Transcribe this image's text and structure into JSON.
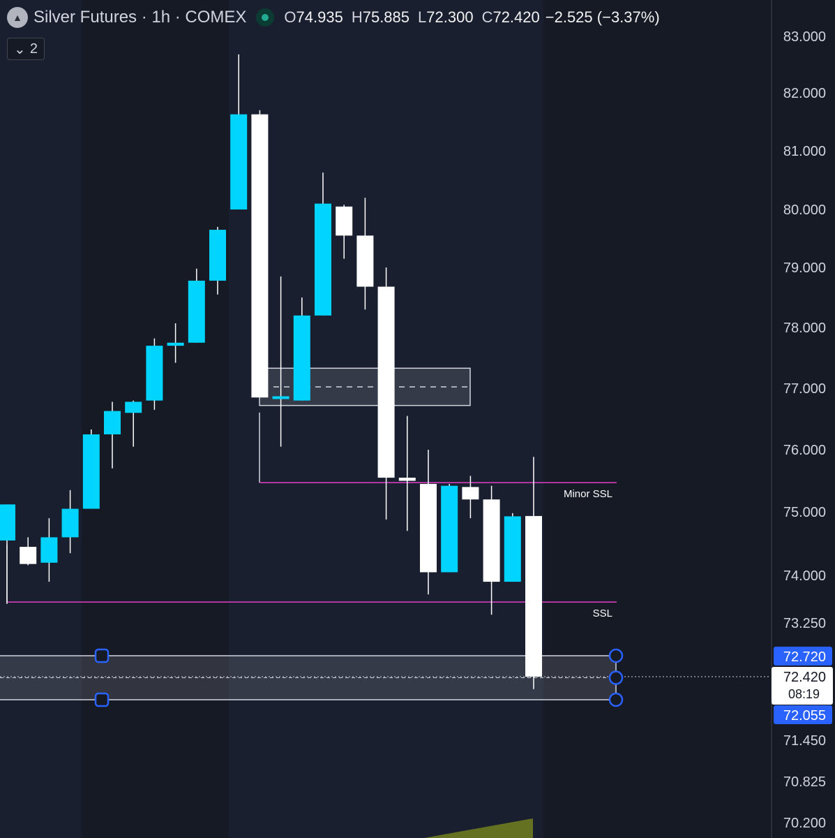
{
  "header": {
    "symbol_title": "Silver Futures · 1h · COMEX",
    "open_label": "O",
    "open": "74.935",
    "high_label": "H",
    "high": "75.885",
    "low_label": "L",
    "low": "72.300",
    "close_label": "C",
    "close": "72.420",
    "change": "−2.525 (−3.37%)",
    "logo_icon": "silver-bars-icon",
    "status_icon": "market-open-dot-icon"
  },
  "collapse_button": {
    "label": "2",
    "icon": "chevron-down-icon"
  },
  "colors": {
    "background": "#161a25",
    "session_band": "#1a1f30",
    "bull": "#00d4ff",
    "bear": "#ffffff",
    "ssl_line": "#e040c8",
    "axis_text": "#d1d4dc",
    "highlight_label": "#2962ff"
  },
  "chart_data": {
    "type": "candlestick",
    "symbol": "Silver Futures",
    "timeframe": "1h",
    "exchange": "COMEX",
    "y_axis_ticks": [
      "83.000",
      "82.000",
      "81.000",
      "80.000",
      "79.000",
      "78.000",
      "77.000",
      "76.000",
      "75.000",
      "74.000",
      "73.250",
      "71.450",
      "70.825",
      "70.200"
    ],
    "price_labels": {
      "zone_top": "72.720",
      "zone_bottom": "72.055",
      "last_price": "72.420",
      "countdown": "08:19"
    },
    "candles": [
      {
        "o": 74.55,
        "h": 75.12,
        "l": 73.55,
        "c": 75.12
      },
      {
        "o": 74.45,
        "h": 74.6,
        "l": 74.16,
        "c": 74.18
      },
      {
        "o": 74.2,
        "h": 74.9,
        "l": 73.9,
        "c": 74.6
      },
      {
        "o": 74.6,
        "h": 75.35,
        "l": 74.35,
        "c": 75.05
      },
      {
        "o": 75.05,
        "h": 76.33,
        "l": 75.05,
        "c": 76.25
      },
      {
        "o": 76.25,
        "h": 76.78,
        "l": 75.7,
        "c": 76.63
      },
      {
        "o": 76.6,
        "h": 76.8,
        "l": 76.05,
        "c": 76.78
      },
      {
        "o": 76.8,
        "h": 77.82,
        "l": 76.65,
        "c": 77.7
      },
      {
        "o": 77.7,
        "h": 78.07,
        "l": 77.42,
        "c": 77.75
      },
      {
        "o": 77.75,
        "h": 78.98,
        "l": 77.75,
        "c": 78.78
      },
      {
        "o": 78.78,
        "h": 79.7,
        "l": 78.55,
        "c": 79.65
      },
      {
        "o": 80.0,
        "h": 82.68,
        "l": 80.0,
        "c": 81.63
      },
      {
        "o": 81.63,
        "h": 81.7,
        "l": 76.85,
        "c": 76.85
      },
      {
        "o": 76.85,
        "h": 78.85,
        "l": 76.05,
        "c": 76.87
      },
      {
        "o": 76.8,
        "h": 78.5,
        "l": 76.8,
        "c": 78.2
      },
      {
        "o": 78.2,
        "h": 80.63,
        "l": 78.2,
        "c": 80.1
      },
      {
        "o": 80.05,
        "h": 80.08,
        "l": 79.15,
        "c": 79.55
      },
      {
        "o": 79.55,
        "h": 80.2,
        "l": 78.3,
        "c": 78.68
      },
      {
        "o": 78.68,
        "h": 79.0,
        "l": 74.88,
        "c": 75.55
      },
      {
        "o": 75.55,
        "h": 76.55,
        "l": 74.7,
        "c": 75.5
      },
      {
        "o": 75.45,
        "h": 76.0,
        "l": 73.7,
        "c": 74.05
      },
      {
        "o": 74.05,
        "h": 75.45,
        "l": 74.05,
        "c": 75.42
      },
      {
        "o": 75.4,
        "h": 75.58,
        "l": 74.9,
        "c": 75.2
      },
      {
        "o": 75.2,
        "h": 75.42,
        "l": 73.38,
        "c": 73.9
      },
      {
        "o": 73.9,
        "h": 74.98,
        "l": 73.9,
        "c": 74.93
      },
      {
        "o": 74.935,
        "h": 75.885,
        "l": 72.3,
        "c": 72.42
      }
    ],
    "annotations": [
      {
        "type": "level",
        "label": "Minor SSL",
        "price": 75.47
      },
      {
        "type": "level",
        "label": "SSL",
        "price": 73.58
      },
      {
        "type": "zone",
        "label": "",
        "top": 77.33,
        "bottom": 76.72
      },
      {
        "type": "zone",
        "label": "",
        "top": 72.72,
        "bottom": 72.055
      }
    ]
  }
}
